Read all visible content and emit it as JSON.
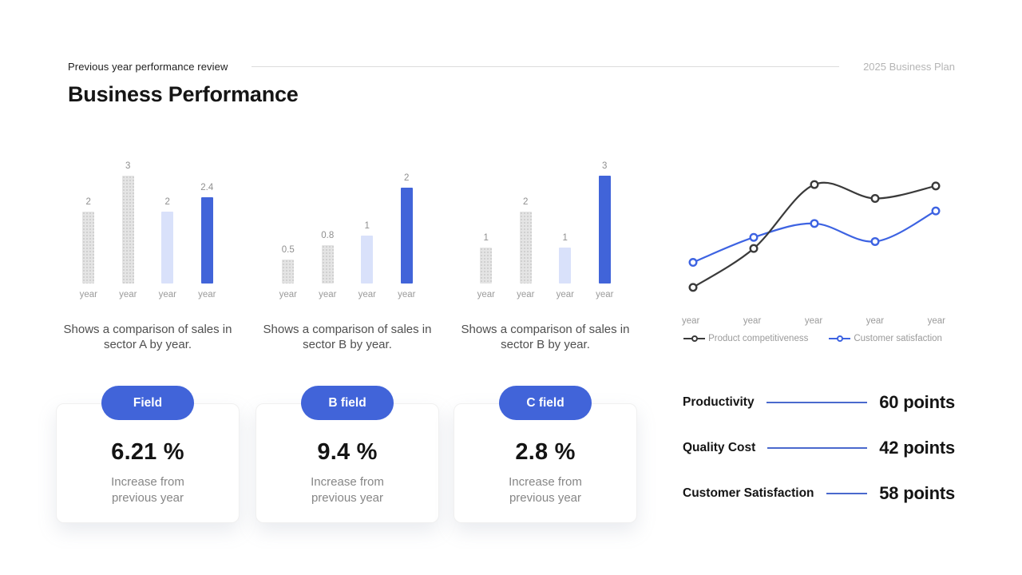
{
  "colors": {
    "accent": "#4164d9",
    "bar_tint": "#d9e1fa",
    "bar_muted": "#e4e4e4",
    "bar_muted_dot": "#c9c9c9",
    "series_dark": "#3a3a3a",
    "series_blue": "#3d63e2",
    "connector_line": "#4a69cd",
    "divider": "#dcdcdc",
    "text_primary": "#151515",
    "text_secondary": "#4f4f4f",
    "text_faint": "#9b9b9b",
    "header_right": "#b5b5b5"
  },
  "header": {
    "eyebrow": "Previous year performance review",
    "right_label": "2025 Business Plan",
    "title": "Business Performance"
  },
  "chart_data": [
    {
      "type": "bar",
      "categories": [
        "year",
        "year",
        "year",
        "year"
      ],
      "values": [
        2,
        3,
        2,
        2.4
      ],
      "labels": [
        "2",
        "3",
        "2",
        "2.4"
      ],
      "ylim": [
        0,
        3.6
      ],
      "grid": false,
      "bar_styles": [
        "muted",
        "muted",
        "tint",
        "accent"
      ],
      "caption": "Shows a comparison of sales in sector A by year."
    },
    {
      "type": "bar",
      "categories": [
        "year",
        "year",
        "year",
        "year"
      ],
      "values": [
        0.5,
        0.8,
        1,
        2
      ],
      "labels": [
        "0.5",
        "0.8",
        "1",
        "2"
      ],
      "ylim": [
        0,
        2.7
      ],
      "grid": false,
      "bar_styles": [
        "muted",
        "muted",
        "tint",
        "accent"
      ],
      "caption": "Shows a comparison of sales in sector B by year."
    },
    {
      "type": "bar",
      "categories": [
        "year",
        "year",
        "year",
        "year"
      ],
      "values": [
        1,
        2,
        1,
        3
      ],
      "labels": [
        "1",
        "2",
        "1",
        "3"
      ],
      "ylim": [
        0,
        3.6
      ],
      "grid": false,
      "bar_styles": [
        "muted",
        "muted",
        "tint",
        "accent"
      ],
      "caption": "Shows a comparison of sales in sector B by year."
    },
    {
      "type": "line",
      "categories": [
        "year",
        "year",
        "year",
        "year",
        "year"
      ],
      "series": [
        {
          "name": "Product competitiveness",
          "color_key": "series_dark",
          "values": [
            1.1,
            3.9,
            8.5,
            7.5,
            8.4
          ]
        },
        {
          "name": "Customer satisfaction",
          "color_key": "series_blue",
          "values": [
            2.9,
            4.7,
            5.7,
            4.4,
            6.6
          ]
        }
      ],
      "ylim": [
        0,
        10
      ],
      "smooth": true,
      "markers": "hollow-circle",
      "legend_position": "bottom",
      "grid": false
    }
  ],
  "cards": [
    {
      "pill": "Field",
      "value": "6.21 %",
      "caption": "Increase from\nprevious year"
    },
    {
      "pill": "B field",
      "value": "9.4 %",
      "caption": "Increase from\nprevious year"
    },
    {
      "pill": "C field",
      "value": "2.8 %",
      "caption": "Increase from\nprevious year"
    }
  ],
  "stats": [
    {
      "label": "Productivity",
      "value": "60 points"
    },
    {
      "label": "Quality Cost",
      "value": "42 points"
    },
    {
      "label": "Customer Satisfaction",
      "value": "58 points"
    }
  ]
}
